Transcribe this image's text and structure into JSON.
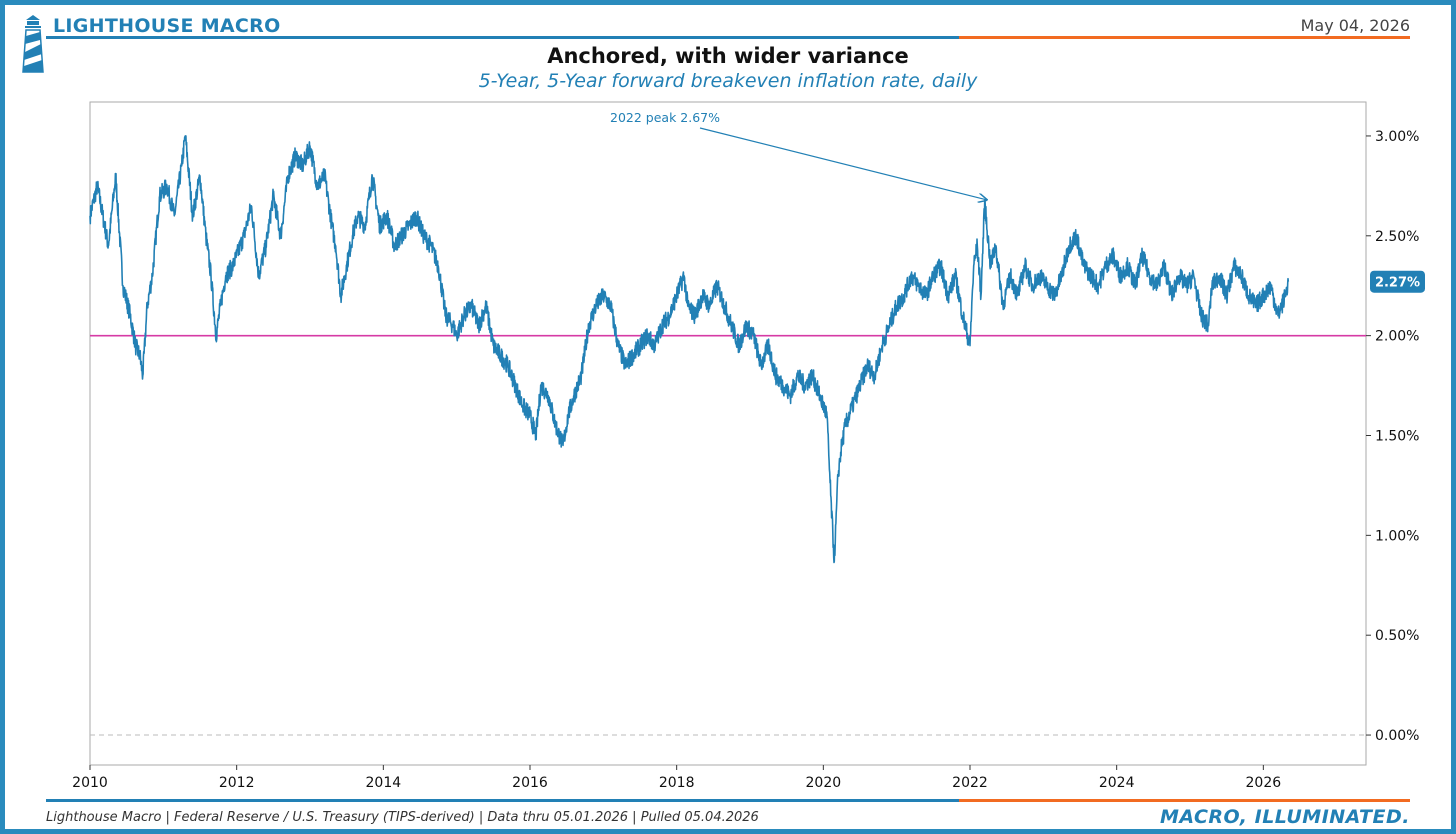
{
  "header": {
    "brand": "LIGHTHOUSE MACRO",
    "date": "May 04, 2026"
  },
  "footer": {
    "source": "Lighthouse Macro | Federal Reserve / U.S. Treasury (TIPS-derived) | Data thru 05.01.2026 | Pulled 05.04.2026",
    "tagline": "MACRO, ILLUMINATED."
  },
  "colors": {
    "primary": "#2280b5",
    "accent": "#f26b21",
    "target_line": "#d63aa5",
    "zero_line": "#bbbbbb"
  },
  "chart_data": {
    "type": "line",
    "title": "Anchored, with wider variance",
    "subtitle": "5-Year, 5-Year forward breakeven inflation rate, daily",
    "xlabel": "",
    "ylabel": "",
    "xlim": [
      2010,
      2027.4
    ],
    "ylim": [
      -0.15,
      3.17
    ],
    "x_ticks": [
      "2010",
      "2012",
      "2014",
      "2016",
      "2018",
      "2020",
      "2022",
      "2024",
      "2026"
    ],
    "y_ticks": [
      "0.00%",
      "0.50%",
      "1.00%",
      "1.50%",
      "2.00%",
      "2.50%",
      "3.00%"
    ],
    "y_axis_side": "right",
    "grid": false,
    "reference_lines": [
      {
        "y": 2.0,
        "style": "solid",
        "color": "#d63aa5"
      },
      {
        "y": 0.0,
        "style": "dashed",
        "color": "#bbbbbb"
      }
    ],
    "annotation": {
      "text": "2022 peak 2.67%",
      "x": 2022.28,
      "y": 2.67
    },
    "last_value_label": "2.27%",
    "series": [
      {
        "color": "#2280b5",
        "x": [
          2010.0,
          2010.1,
          2010.25,
          2010.35,
          2010.45,
          2010.55,
          2010.62,
          2010.68,
          2010.72,
          2010.78,
          2010.85,
          2010.95,
          2011.05,
          2011.15,
          2011.25,
          2011.3,
          2011.4,
          2011.5,
          2011.58,
          2011.65,
          2011.72,
          2011.78,
          2011.85,
          2011.95,
          2012.1,
          2012.2,
          2012.3,
          2012.4,
          2012.5,
          2012.6,
          2012.7,
          2012.8,
          2012.9,
          2013.0,
          2013.1,
          2013.2,
          2013.3,
          2013.35,
          2013.42,
          2013.5,
          2013.58,
          2013.65,
          2013.75,
          2013.85,
          2013.95,
          2014.05,
          2014.15,
          2014.25,
          2014.35,
          2014.45,
          2014.55,
          2014.65,
          2014.75,
          2014.85,
          2014.95,
          2015.0,
          2015.1,
          2015.2,
          2015.3,
          2015.4,
          2015.5,
          2015.6,
          2015.7,
          2015.8,
          2015.9,
          2016.0,
          2016.08,
          2016.15,
          2016.25,
          2016.35,
          2016.45,
          2016.52,
          2016.6,
          2016.7,
          2016.8,
          2016.9,
          2017.0,
          2017.1,
          2017.2,
          2017.3,
          2017.4,
          2017.5,
          2017.6,
          2017.7,
          2017.8,
          2017.9,
          2018.0,
          2018.1,
          2018.15,
          2018.25,
          2018.35,
          2018.45,
          2018.55,
          2018.65,
          2018.75,
          2018.85,
          2018.95,
          2019.05,
          2019.15,
          2019.25,
          2019.35,
          2019.45,
          2019.55,
          2019.65,
          2019.75,
          2019.85,
          2019.95,
          2020.05,
          2020.1,
          2020.15,
          2020.2,
          2020.25,
          2020.3,
          2020.4,
          2020.5,
          2020.6,
          2020.7,
          2020.8,
          2020.9,
          2021.0,
          2021.1,
          2021.2,
          2021.3,
          2021.4,
          2021.5,
          2021.6,
          2021.7,
          2021.8,
          2021.9,
          2022.0,
          2022.05,
          2022.1,
          2022.15,
          2022.2,
          2022.28,
          2022.35,
          2022.45,
          2022.55,
          2022.65,
          2022.75,
          2022.85,
          2022.95,
          2023.05,
          2023.15,
          2023.25,
          2023.35,
          2023.45,
          2023.55,
          2023.65,
          2023.75,
          2023.85,
          2023.95,
          2024.05,
          2024.15,
          2024.25,
          2024.35,
          2024.45,
          2024.55,
          2024.65,
          2024.75,
          2024.85,
          2024.95,
          2025.05,
          2025.15,
          2025.25,
          2025.3,
          2025.4,
          2025.5,
          2025.6,
          2025.7,
          2025.8,
          2025.9,
          2026.0,
          2026.1,
          2026.2,
          2026.25,
          2026.3,
          2026.34
        ],
        "values": [
          2.6,
          2.75,
          2.45,
          2.8,
          2.25,
          2.1,
          1.95,
          1.9,
          1.8,
          2.15,
          2.3,
          2.7,
          2.75,
          2.6,
          2.85,
          3.0,
          2.6,
          2.8,
          2.5,
          2.3,
          2.0,
          2.15,
          2.3,
          2.35,
          2.5,
          2.65,
          2.3,
          2.45,
          2.7,
          2.5,
          2.8,
          2.9,
          2.85,
          2.95,
          2.75,
          2.8,
          2.55,
          2.45,
          2.2,
          2.35,
          2.5,
          2.6,
          2.55,
          2.8,
          2.55,
          2.6,
          2.45,
          2.5,
          2.55,
          2.6,
          2.5,
          2.45,
          2.35,
          2.1,
          2.05,
          2.0,
          2.1,
          2.15,
          2.05,
          2.15,
          1.95,
          1.9,
          1.85,
          1.75,
          1.65,
          1.6,
          1.5,
          1.75,
          1.7,
          1.55,
          1.45,
          1.6,
          1.7,
          1.8,
          2.05,
          2.15,
          2.2,
          2.15,
          1.95,
          1.85,
          1.9,
          1.95,
          2.0,
          1.95,
          2.05,
          2.1,
          2.2,
          2.3,
          2.15,
          2.1,
          2.2,
          2.15,
          2.25,
          2.15,
          2.05,
          1.95,
          2.05,
          2.0,
          1.85,
          1.95,
          1.8,
          1.75,
          1.7,
          1.8,
          1.75,
          1.8,
          1.7,
          1.6,
          1.2,
          0.87,
          1.3,
          1.45,
          1.55,
          1.65,
          1.75,
          1.85,
          1.8,
          1.95,
          2.05,
          2.15,
          2.2,
          2.3,
          2.25,
          2.2,
          2.3,
          2.35,
          2.2,
          2.3,
          2.1,
          1.95,
          2.35,
          2.45,
          2.2,
          2.67,
          2.35,
          2.45,
          2.15,
          2.3,
          2.2,
          2.35,
          2.25,
          2.3,
          2.25,
          2.2,
          2.3,
          2.45,
          2.5,
          2.35,
          2.3,
          2.25,
          2.35,
          2.4,
          2.3,
          2.35,
          2.25,
          2.4,
          2.3,
          2.25,
          2.35,
          2.2,
          2.3,
          2.25,
          2.3,
          2.1,
          2.05,
          2.25,
          2.3,
          2.2,
          2.35,
          2.3,
          2.2,
          2.15,
          2.2,
          2.25,
          2.1,
          2.15,
          2.2,
          2.27
        ]
      }
    ]
  }
}
